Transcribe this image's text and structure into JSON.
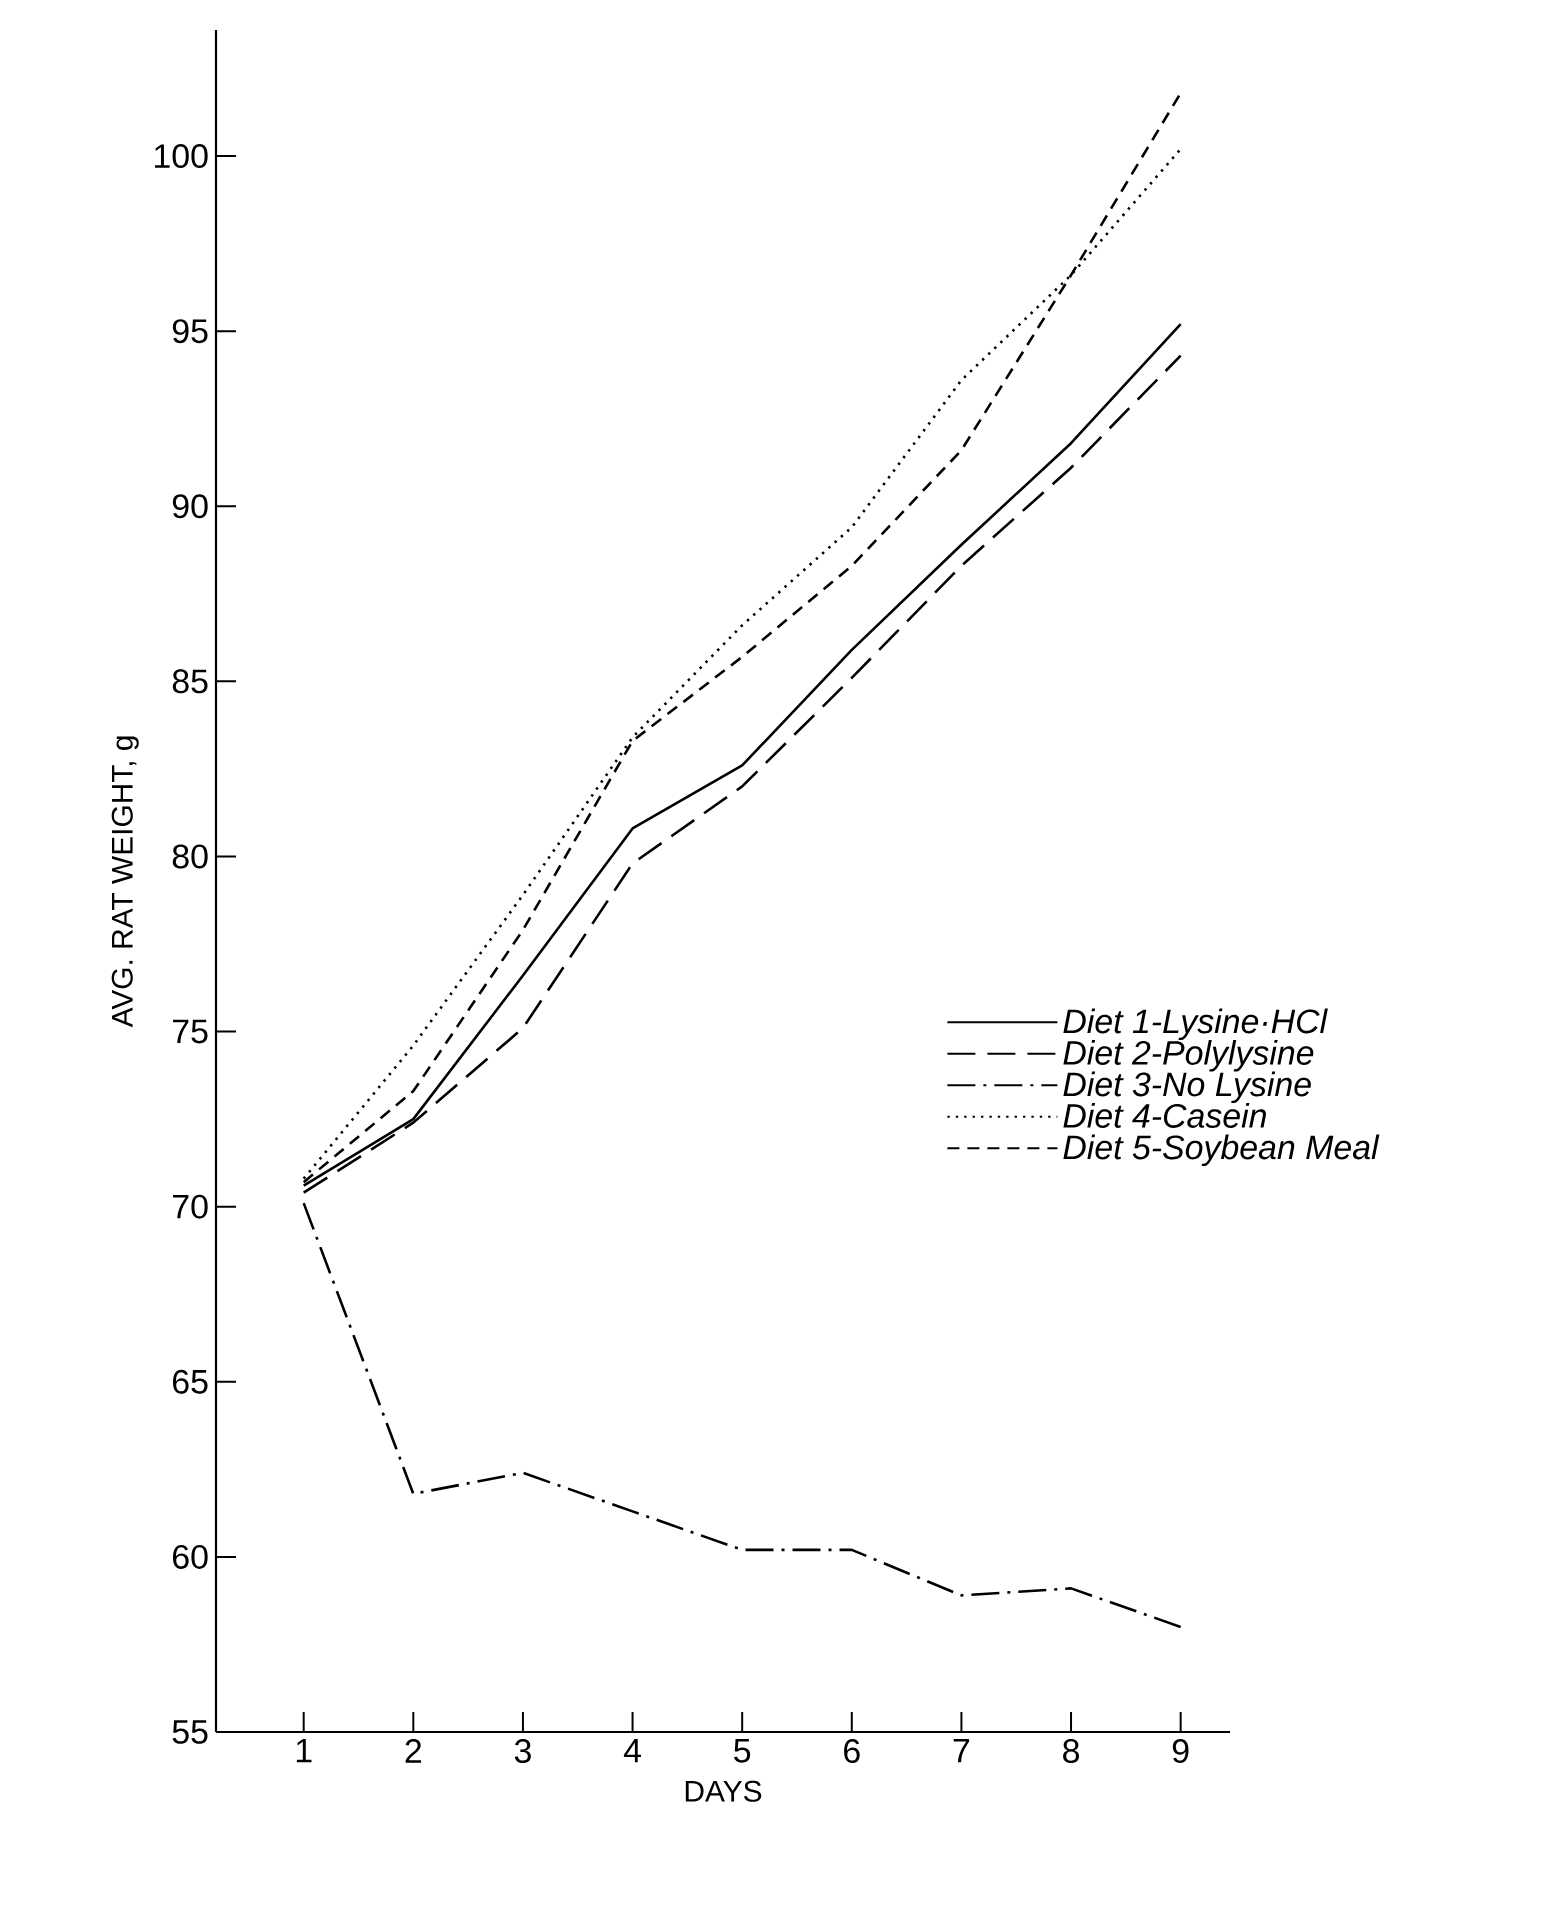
{
  "chart_data": {
    "type": "line",
    "xlabel": "DAYS",
    "ylabel": "AVG. RAT WEIGHT, g",
    "x": [
      1,
      2,
      3,
      4,
      5,
      6,
      7,
      8,
      9
    ],
    "series": [
      {
        "name": "Diet 1-Lysine·HCl",
        "color": "#000000",
        "line_style": "solid",
        "values": [
          70.6,
          72.5,
          76.6,
          80.8,
          82.6,
          85.9,
          88.9,
          91.8,
          95.2
        ]
      },
      {
        "name": "Diet 2-Polylysine",
        "color": "#000000",
        "line_style": "long dashed",
        "values": [
          70.4,
          72.4,
          75.1,
          79.8,
          82.0,
          85.1,
          88.3,
          91.1,
          94.3
        ]
      },
      {
        "name": "Diet 3-No Lysine",
        "color": "#000000",
        "line_style": "dash dot",
        "values": [
          70.1,
          61.8,
          62.4,
          61.3,
          60.2,
          60.2,
          58.9,
          59.1,
          58.0
        ]
      },
      {
        "name": "Diet 4-Casein",
        "color": "#000000",
        "line_style": "dotted",
        "values": [
          70.8,
          74.6,
          78.9,
          83.4,
          86.6,
          89.4,
          93.6,
          96.6,
          100.2
        ]
      },
      {
        "name": "Diet 5-Soybean Meal",
        "color": "#000000",
        "line_style": "dashed",
        "values": [
          70.7,
          73.3,
          77.9,
          83.3,
          85.7,
          88.3,
          91.6,
          96.6,
          101.8
        ]
      }
    ],
    "xlim": [
      0.2,
      9.45
    ],
    "xticks": [
      1,
      2,
      3,
      4,
      5,
      6,
      7,
      8,
      9
    ],
    "ylim": [
      55,
      103.6
    ],
    "yticks": [
      55,
      60,
      65,
      70,
      75,
      80,
      85,
      90,
      95,
      100
    ],
    "legend": "right",
    "grid": false
  }
}
